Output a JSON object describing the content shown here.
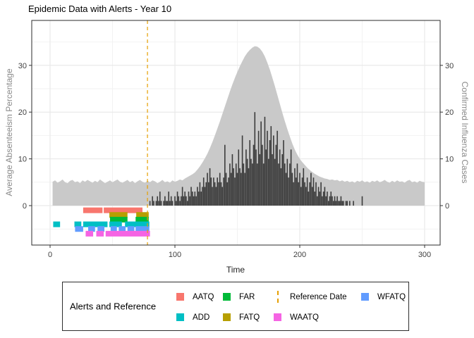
{
  "chart_data": {
    "type": "bar",
    "title": "Epidemic Data with Alerts - Year 10",
    "xlabel": "Time",
    "ylabel_left": "Average Absenteeism Percentage",
    "ylabel_right": "Confirmed Influenza Cases",
    "x_ticks": [
      0,
      100,
      200,
      300
    ],
    "y_ticks": [
      0,
      10,
      20,
      30
    ],
    "xlim": [
      -15,
      312
    ],
    "ylim": [
      -8.4,
      39.6
    ],
    "grid": "major and minor, light gray on white, black panel border",
    "series": [
      {
        "name": "absenteeism_area",
        "type": "area",
        "color": "#C9C9C9",
        "t_start": 2,
        "t_step": 2,
        "values": [
          5.1,
          5.4,
          4.9,
          5.2,
          5.6,
          5.0,
          4.8,
          5.3,
          5.5,
          5.0,
          5.2,
          4.8,
          5.4,
          5.1,
          5.5,
          5.2,
          4.9,
          5.3,
          5.0,
          5.6,
          5.2,
          4.8,
          5.1,
          5.4,
          5.0,
          5.3,
          5.6,
          5.1,
          4.9,
          5.2,
          5.5,
          5.0,
          5.3,
          4.8,
          5.2,
          5.5,
          5.1,
          4.9,
          5.3,
          5.0,
          5.4,
          5.2,
          4.8,
          5.1,
          5.5,
          5.0,
          5.2,
          4.9,
          5.4,
          5.1,
          5.3,
          5.6,
          5.4,
          5.8,
          6.1,
          6.4,
          6.7,
          7.1,
          7.7,
          8.4,
          9.2,
          10.1,
          11.1,
          12.3,
          13.6,
          15.0,
          16.5,
          18.0,
          19.6,
          21.2,
          22.8,
          24.4,
          25.9,
          27.3,
          28.6,
          29.8,
          30.9,
          31.9,
          32.7,
          33.3,
          33.8,
          34.1,
          34.0,
          33.6,
          32.9,
          31.9,
          30.6,
          29.1,
          27.4,
          25.6,
          23.7,
          21.8,
          19.9,
          18.1,
          16.4,
          14.8,
          13.3,
          12.0,
          10.9,
          10.0,
          9.3,
          8.7,
          8.1,
          7.6,
          7.2,
          6.8,
          6.5,
          6.2,
          6.0,
          5.8,
          5.7,
          5.5,
          5.6,
          5.4,
          5.5,
          5.2,
          5.4,
          5.1,
          5.3,
          5.0,
          5.2,
          4.9,
          5.3,
          5.1,
          5.4,
          5.0,
          5.2,
          4.9,
          5.3,
          5.1,
          5.4,
          5.0,
          5.2,
          5.5,
          5.1,
          4.9,
          5.3,
          5.0,
          5.4,
          5.1,
          5.2,
          4.9,
          5.3,
          5.5,
          5.0,
          5.2,
          4.9,
          5.3,
          5.1,
          5.0
        ]
      },
      {
        "name": "influenza_cases_bars",
        "type": "bar",
        "color": "#3C3C3C",
        "t_start": 80,
        "t_step": 1,
        "values": [
          1,
          0,
          2,
          1,
          0,
          1,
          2,
          1,
          3,
          1,
          0,
          1,
          2,
          1,
          1,
          3,
          1,
          2,
          1,
          0,
          2,
          1,
          3,
          2,
          1,
          2,
          4,
          2,
          3,
          2,
          1,
          3,
          2,
          4,
          3,
          2,
          3,
          2,
          4,
          3,
          5,
          3,
          4,
          6,
          4,
          5,
          7,
          5,
          8,
          6,
          4,
          6,
          5,
          4,
          6,
          5,
          7,
          5,
          4,
          6,
          13,
          7,
          5,
          6,
          9,
          7,
          11,
          8,
          6,
          9,
          7,
          12,
          8,
          7,
          15,
          9,
          7,
          12,
          10,
          8,
          14,
          10,
          9,
          13,
          20,
          12,
          9,
          16,
          11,
          18,
          13,
          9,
          19,
          12,
          16,
          10,
          14,
          17,
          11,
          15,
          10,
          13,
          16,
          9,
          12,
          8,
          11,
          14,
          9,
          7,
          10,
          6,
          9,
          12,
          7,
          5,
          8,
          6,
          9,
          5,
          7,
          4,
          6,
          8,
          5,
          4,
          6,
          3,
          5,
          7,
          4,
          6,
          3,
          5,
          2,
          4,
          3,
          5,
          2,
          3,
          4,
          2,
          3,
          1,
          2,
          3,
          2,
          1,
          2,
          1,
          2,
          1,
          1,
          2,
          1,
          1,
          0,
          1,
          1,
          0,
          1,
          0,
          0,
          1,
          0,
          0,
          0,
          0,
          0,
          0,
          2,
          0,
          0
        ]
      }
    ],
    "reference_line": {
      "label": "Reference Date",
      "x": 78,
      "color": "#E69F00",
      "style": "dashed"
    },
    "alert_marks": [
      {
        "label": "AATQ",
        "color": "#F8766D",
        "level": -1,
        "segments": [
          [
            26.5,
            42
          ],
          [
            43,
            74
          ]
        ]
      },
      {
        "label": "FATQ",
        "color": "#B79F00",
        "level": -2,
        "segments": [
          [
            47.5,
            62
          ],
          [
            69,
            79
          ]
        ]
      },
      {
        "label": "FAR",
        "color": "#00BA38",
        "level": -3,
        "segments": [
          [
            48,
            62
          ],
          [
            68.5,
            79
          ]
        ]
      },
      {
        "label": "ADD",
        "color": "#00BFC4",
        "level": -4,
        "segments": [
          [
            2.5,
            8
          ],
          [
            19.5,
            25
          ],
          [
            26.5,
            46
          ],
          [
            47.5,
            57.5
          ],
          [
            60,
            79.5
          ]
        ]
      },
      {
        "label": "WFATQ",
        "color": "#619CFF",
        "level": -5,
        "segments": [
          [
            20,
            26.5
          ],
          [
            30.5,
            36
          ],
          [
            38,
            43.5
          ],
          [
            48.5,
            53.5
          ],
          [
            55,
            60.5
          ],
          [
            62,
            67.5
          ],
          [
            68.5,
            79.5
          ]
        ]
      },
      {
        "label": "WAATQ",
        "color": "#F564E3",
        "level": -6,
        "segments": [
          [
            28.5,
            34.5
          ],
          [
            37,
            43
          ],
          [
            44.5,
            80
          ]
        ]
      }
    ]
  },
  "legend": {
    "title": "Alerts and Reference",
    "items": [
      {
        "label": "AATQ",
        "color": "#F8766D",
        "key": "square",
        "col": 0,
        "row": 0
      },
      {
        "label": "ADD",
        "color": "#00BFC4",
        "key": "square",
        "col": 0,
        "row": 1
      },
      {
        "label": "FAR",
        "color": "#00BA38",
        "key": "square",
        "col": 1,
        "row": 0
      },
      {
        "label": "FATQ",
        "color": "#B79F00",
        "key": "square",
        "col": 1,
        "row": 1
      },
      {
        "label": "Reference Date",
        "color": "#E69F00",
        "key": "dashed-line",
        "col": 2,
        "row": 0
      },
      {
        "label": "WAATQ",
        "color": "#F564E3",
        "key": "square",
        "col": 2,
        "row": 1
      },
      {
        "label": "WFATQ",
        "color": "#619CFF",
        "key": "square",
        "col": 3,
        "row": 0
      }
    ]
  }
}
